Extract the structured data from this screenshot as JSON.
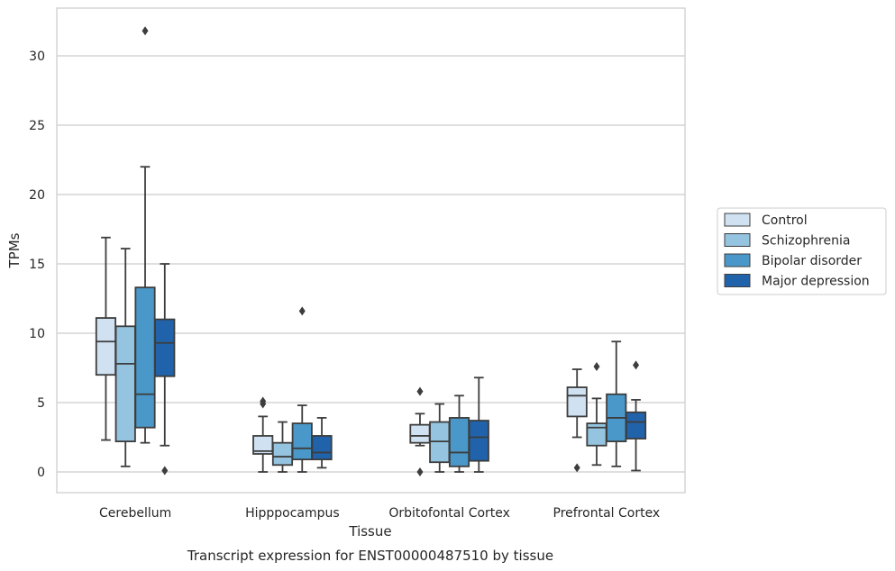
{
  "chart_data": {
    "type": "box",
    "title": "",
    "caption": "Transcript expression for ENST00000487510 by tissue",
    "xlabel": "Tissue",
    "ylabel": "TPMs",
    "ylim": [
      -1.5,
      33
    ],
    "yticks": [
      0,
      5,
      10,
      15,
      20,
      25,
      30
    ],
    "grid": "horizontal",
    "legend_position": "right",
    "categories": [
      "Cerebellum",
      "Hipppocampus",
      "Orbitofontal Cortex",
      "Prefrontal Cortex"
    ],
    "series": [
      {
        "name": "Control",
        "color": "#d0e1f2",
        "boxes": [
          {
            "whislo": 2.3,
            "q1": 7.0,
            "med": 9.4,
            "q3": 11.1,
            "whishi": 16.9,
            "fliers": []
          },
          {
            "whislo": 0.0,
            "q1": 1.3,
            "med": 1.5,
            "q3": 2.6,
            "whishi": 4.0,
            "fliers": [
              4.9,
              5.1
            ]
          },
          {
            "whislo": 1.9,
            "q1": 2.1,
            "med": 2.6,
            "q3": 3.4,
            "whishi": 4.2,
            "fliers": [
              5.8,
              0.0
            ]
          },
          {
            "whislo": 2.5,
            "q1": 4.0,
            "med": 5.5,
            "q3": 6.1,
            "whishi": 7.4,
            "fliers": [
              0.3
            ]
          }
        ]
      },
      {
        "name": "Schizophrenia",
        "color": "#94c4df",
        "boxes": [
          {
            "whislo": 0.4,
            "q1": 2.2,
            "med": 7.8,
            "q3": 10.5,
            "whishi": 16.1,
            "fliers": []
          },
          {
            "whislo": 0.0,
            "q1": 0.5,
            "med": 1.1,
            "q3": 2.1,
            "whishi": 3.6,
            "fliers": []
          },
          {
            "whislo": 0.0,
            "q1": 0.7,
            "med": 2.2,
            "q3": 3.6,
            "whishi": 4.9,
            "fliers": []
          },
          {
            "whislo": 0.5,
            "q1": 1.9,
            "med": 3.2,
            "q3": 3.5,
            "whishi": 5.3,
            "fliers": [
              7.6
            ]
          }
        ]
      },
      {
        "name": "Bipolar disorder",
        "color": "#4a98c9",
        "boxes": [
          {
            "whislo": 2.1,
            "q1": 3.2,
            "med": 5.6,
            "q3": 13.3,
            "whishi": 22.0,
            "fliers": [
              31.8
            ]
          },
          {
            "whislo": 0.0,
            "q1": 0.9,
            "med": 1.7,
            "q3": 3.5,
            "whishi": 4.8,
            "fliers": [
              11.6
            ]
          },
          {
            "whislo": 0.0,
            "q1": 0.4,
            "med": 1.4,
            "q3": 3.9,
            "whishi": 5.5,
            "fliers": []
          },
          {
            "whislo": 0.4,
            "q1": 2.2,
            "med": 3.9,
            "q3": 5.6,
            "whishi": 9.4,
            "fliers": []
          }
        ]
      },
      {
        "name": "Major depression",
        "color": "#2163aa",
        "boxes": [
          {
            "whislo": 1.9,
            "q1": 6.9,
            "med": 9.3,
            "q3": 11.0,
            "whishi": 15.0,
            "fliers": [
              0.1
            ]
          },
          {
            "whislo": 0.3,
            "q1": 0.9,
            "med": 1.4,
            "q3": 2.6,
            "whishi": 3.9,
            "fliers": []
          },
          {
            "whislo": 0.0,
            "q1": 0.8,
            "med": 2.5,
            "q3": 3.7,
            "whishi": 6.8,
            "fliers": []
          },
          {
            "whislo": 0.1,
            "q1": 2.4,
            "med": 3.6,
            "q3": 4.3,
            "whishi": 5.2,
            "fliers": [
              7.7
            ]
          }
        ]
      }
    ]
  }
}
